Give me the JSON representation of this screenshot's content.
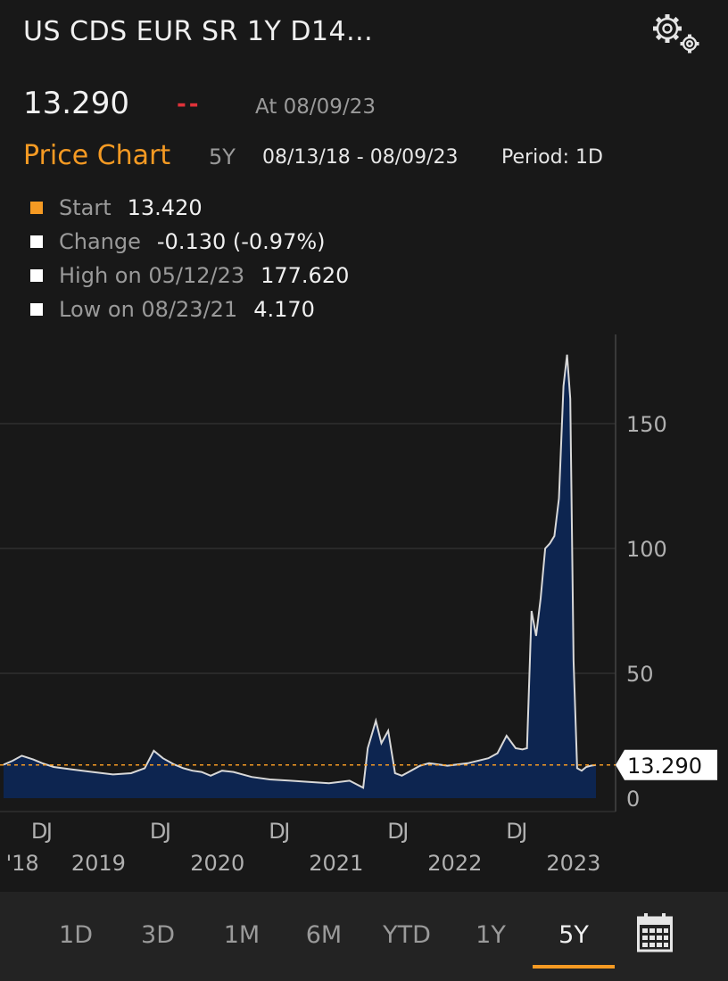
{
  "header": {
    "title": "US CDS EUR SR 1Y D14...",
    "price": "13.290",
    "change": "--",
    "as_of": "At 08/09/23"
  },
  "chart_header": {
    "title": "Price Chart",
    "range": "5Y",
    "dates": "08/13/18 - 08/09/23",
    "period": "Period: 1D"
  },
  "legend": [
    {
      "label": "Start",
      "value": "13.420",
      "color": "#f59a23"
    },
    {
      "label": "Change",
      "value": "-0.130 (-0.97%)",
      "color": "#ffffff"
    },
    {
      "label": "High on 05/12/23",
      "value": "177.620",
      "color": "#ffffff"
    },
    {
      "label": "Low on 08/23/21",
      "value": "4.170",
      "color": "#ffffff"
    }
  ],
  "nav": {
    "items": [
      "1D",
      "3D",
      "1M",
      "6M",
      "YTD",
      "1Y",
      "5Y"
    ],
    "active": "5Y",
    "calendar_icon": "calendar-icon"
  },
  "colors": {
    "accent": "#f59a23",
    "fill": "#0d2550",
    "line": "#d8d8d8",
    "negative": "#e0323a",
    "background": "#181818"
  },
  "chart_data": {
    "type": "area",
    "title": "",
    "xlabel": "",
    "ylabel": "",
    "ylim": [
      0,
      180
    ],
    "yticks": [
      0,
      50,
      100,
      150
    ],
    "grid": true,
    "last_value_label": "13.290",
    "reference_line": 13.29,
    "x_tick_labels": [
      {
        "date": "2018-12-01",
        "label": "D"
      },
      {
        "date": "2019-01-01",
        "label": "J"
      },
      {
        "date": "2019-12-01",
        "label": "D"
      },
      {
        "date": "2020-01-01",
        "label": "J"
      },
      {
        "date": "2020-12-01",
        "label": "D"
      },
      {
        "date": "2021-01-01",
        "label": "J"
      },
      {
        "date": "2021-12-01",
        "label": "D"
      },
      {
        "date": "2022-01-01",
        "label": "J"
      },
      {
        "date": "2022-12-01",
        "label": "D"
      },
      {
        "date": "2023-01-01",
        "label": "J"
      }
    ],
    "year_labels": [
      {
        "date": "2018-10-10",
        "label": "'18"
      },
      {
        "date": "2019-06-01",
        "label": "2019"
      },
      {
        "date": "2020-06-01",
        "label": "2020"
      },
      {
        "date": "2021-06-01",
        "label": "2021"
      },
      {
        "date": "2022-06-01",
        "label": "2022"
      },
      {
        "date": "2023-06-01",
        "label": "2023"
      }
    ],
    "x": [
      "2018-08-13",
      "2018-09-10",
      "2018-10-08",
      "2018-11-12",
      "2018-12-10",
      "2019-01-14",
      "2019-03-11",
      "2019-05-13",
      "2019-07-15",
      "2019-09-09",
      "2019-10-21",
      "2019-11-18",
      "2019-12-16",
      "2020-01-20",
      "2020-02-17",
      "2020-03-16",
      "2020-04-13",
      "2020-05-11",
      "2020-06-15",
      "2020-07-20",
      "2020-09-14",
      "2020-11-09",
      "2021-01-11",
      "2021-03-08",
      "2021-05-10",
      "2021-07-12",
      "2021-08-23",
      "2021-09-06",
      "2021-10-01",
      "2021-10-18",
      "2021-11-08",
      "2021-11-29",
      "2021-12-20",
      "2022-01-10",
      "2022-02-14",
      "2022-03-14",
      "2022-05-09",
      "2022-07-11",
      "2022-09-12",
      "2022-10-10",
      "2022-11-07",
      "2022-12-05",
      "2022-12-26",
      "2023-01-09",
      "2023-01-23",
      "2023-02-06",
      "2023-02-20",
      "2023-03-06",
      "2023-03-20",
      "2023-04-03",
      "2023-04-17",
      "2023-05-01",
      "2023-05-12",
      "2023-05-22",
      "2023-06-01",
      "2023-06-12",
      "2023-06-26",
      "2023-07-10",
      "2023-07-24",
      "2023-08-09"
    ],
    "values": [
      13.42,
      15.0,
      17.0,
      15.5,
      14.0,
      12.5,
      11.5,
      10.5,
      9.5,
      10.0,
      12.0,
      19.0,
      16.0,
      13.5,
      12.0,
      11.0,
      10.5,
      9.0,
      11.0,
      10.5,
      8.5,
      7.5,
      7.0,
      6.5,
      6.0,
      7.0,
      4.17,
      20.0,
      31.0,
      22.0,
      27.0,
      10.0,
      9.0,
      10.5,
      13.0,
      14.0,
      13.0,
      14.0,
      16.0,
      18.0,
      25.0,
      20.0,
      19.5,
      20.0,
      75.0,
      65.0,
      80.0,
      100.0,
      102.0,
      105.0,
      120.0,
      165.0,
      177.62,
      160.0,
      55.0,
      12.0,
      11.0,
      12.5,
      13.0,
      13.29
    ]
  }
}
